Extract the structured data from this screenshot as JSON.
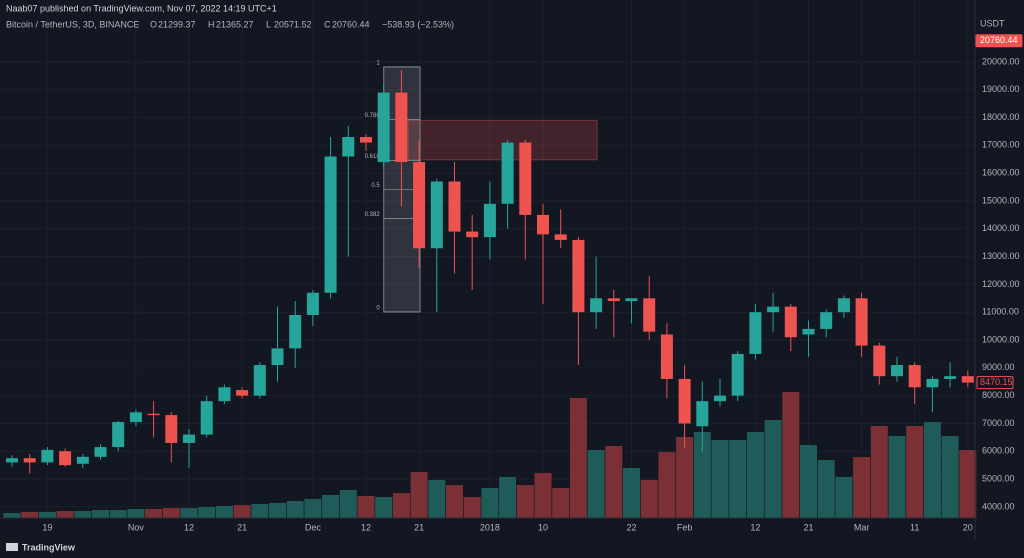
{
  "header": {
    "publisher": "Naab07 published on TradingView.com, Nov 07, 2022 14:19 UTC+1",
    "symbol": "Bitcoin / TetherUS, 3D, BINANCE",
    "ohlc": [
      {
        "label": "O",
        "value": "21299.37"
      },
      {
        "label": "H",
        "value": "21365.27"
      },
      {
        "label": "L",
        "value": "20571.52"
      },
      {
        "label": "C",
        "value": "20760.44"
      }
    ],
    "change": "−538.93 (−2.53%)",
    "currency": "USDT",
    "brand": "TradingView"
  },
  "chart_data": {
    "type": "candlestick",
    "categories": [
      null,
      null,
      "19",
      null,
      null,
      null,
      null,
      "Nov",
      null,
      null,
      "12",
      null,
      null,
      "21",
      null,
      null,
      null,
      "Dec",
      null,
      null,
      "12",
      null,
      null,
      "21",
      null,
      null,
      null,
      "2018",
      null,
      null,
      "10",
      null,
      null,
      null,
      null,
      "22",
      null,
      null,
      "Feb",
      null,
      null,
      null,
      "12",
      null,
      null,
      "21",
      null,
      null,
      "Mar",
      null,
      null,
      "11",
      null,
      null,
      "20"
    ],
    "open": [
      5600,
      5750,
      5600,
      6000,
      5550,
      5800,
      6150,
      7050,
      7350,
      7300,
      6300,
      6600,
      7800,
      8200,
      8000,
      9100,
      9700,
      10900,
      11700,
      16600,
      17300,
      16400,
      18900,
      16400,
      13300,
      15700,
      13900,
      13700,
      14900,
      17100,
      14500,
      13800,
      13600,
      11000,
      11500,
      11400,
      11500,
      10200,
      8600,
      6900,
      7800,
      8000,
      9500,
      11000,
      11200,
      10200,
      10400,
      11000,
      11500,
      9800,
      8700,
      9100,
      8300,
      8600,
      8700
    ],
    "high": [
      5850,
      5900,
      6150,
      6100,
      5900,
      6250,
      7100,
      7500,
      7800,
      7400,
      6800,
      8000,
      8400,
      8300,
      9200,
      11200,
      11400,
      11800,
      17300,
      17700,
      17400,
      19200,
      19700,
      17200,
      15800,
      16400,
      14500,
      15700,
      17200,
      17200,
      14900,
      14700,
      13700,
      13000,
      11800,
      11500,
      12300,
      10600,
      9100,
      8500,
      8600,
      9600,
      11300,
      11700,
      11300,
      10700,
      11100,
      11600,
      11700,
      9900,
      9400,
      9200,
      8700,
      9200,
      8900
    ],
    "low": [
      5450,
      5200,
      5500,
      5450,
      5400,
      5700,
      6000,
      6900,
      6500,
      5600,
      5400,
      6500,
      7700,
      7900,
      7900,
      8500,
      9000,
      10500,
      11500,
      13000,
      16800,
      16200,
      14800,
      12600,
      11000,
      12400,
      11800,
      12900,
      14000,
      12900,
      11300,
      13300,
      9100,
      10400,
      10100,
      10600,
      10000,
      7900,
      6100,
      6000,
      7600,
      7800,
      9300,
      10300,
      9600,
      9400,
      10100,
      10800,
      9400,
      8400,
      8500,
      7700,
      7400,
      8300,
      8300
    ],
    "close": [
      5750,
      5600,
      6050,
      5500,
      5800,
      6150,
      7050,
      7400,
      7300,
      6300,
      6600,
      7800,
      8300,
      8000,
      9100,
      9700,
      10900,
      11700,
      16600,
      17300,
      17100,
      18900,
      16400,
      13300,
      15700,
      13900,
      13700,
      14900,
      17100,
      14500,
      13800,
      13600,
      11000,
      11500,
      11400,
      11500,
      10300,
      8600,
      7000,
      7800,
      8000,
      9500,
      11000,
      11200,
      10100,
      10400,
      11000,
      11500,
      9800,
      8700,
      9100,
      8300,
      8600,
      8700,
      8470
    ],
    "volume": [
      5,
      6,
      6,
      7,
      7,
      8,
      8,
      9,
      9,
      10,
      10,
      11,
      12,
      13,
      14,
      15,
      17,
      19,
      23,
      28,
      22,
      21,
      25,
      46,
      38,
      33,
      21,
      30,
      41,
      33,
      45,
      30,
      120,
      68,
      72,
      50,
      38,
      66,
      81,
      86,
      78,
      78,
      86,
      98,
      126,
      73,
      58,
      41,
      61,
      92,
      82,
      92,
      96,
      82,
      68
    ],
    "up_color": "#26a69a",
    "down_color": "#ef5350",
    "volume_up_color": "#1f5c59",
    "volume_down_color": "#7a3034",
    "ylim": [
      3600,
      21580
    ],
    "yticks": [
      {
        "value": 4000,
        "label": "4000.00"
      },
      {
        "value": 5000,
        "label": "5000.00"
      },
      {
        "value": 6000,
        "label": "6000.00"
      },
      {
        "value": 7000,
        "label": "7000.00"
      },
      {
        "value": 8000,
        "label": "8000.00"
      },
      {
        "value": 9000,
        "label": "9000.00"
      },
      {
        "value": 10000,
        "label": "10000.00"
      },
      {
        "value": 11000,
        "label": "11000.00"
      },
      {
        "value": 12000,
        "label": "12000.00"
      },
      {
        "value": 13000,
        "label": "13000.00"
      },
      {
        "value": 14000,
        "label": "14000.00"
      },
      {
        "value": 15000,
        "label": "15000.00"
      },
      {
        "value": 16000,
        "label": "16000.00"
      },
      {
        "value": 17000,
        "label": "17000.00"
      },
      {
        "value": 18000,
        "label": "18000.00"
      },
      {
        "value": 19000,
        "label": "19000.00"
      },
      {
        "value": 20000,
        "label": "20000.00"
      }
    ],
    "last_prices": [
      {
        "value": 20760.44,
        "label": "20760.44"
      },
      {
        "value": 8470.15,
        "label": "8470.15"
      }
    ],
    "fib": {
      "high": 19820,
      "low": 11010,
      "levels": [
        1,
        0.786,
        0.618,
        0.5,
        0.382,
        0
      ]
    },
    "zone": {
      "top": 17900,
      "bottom": 16480
    },
    "grid": true
  }
}
